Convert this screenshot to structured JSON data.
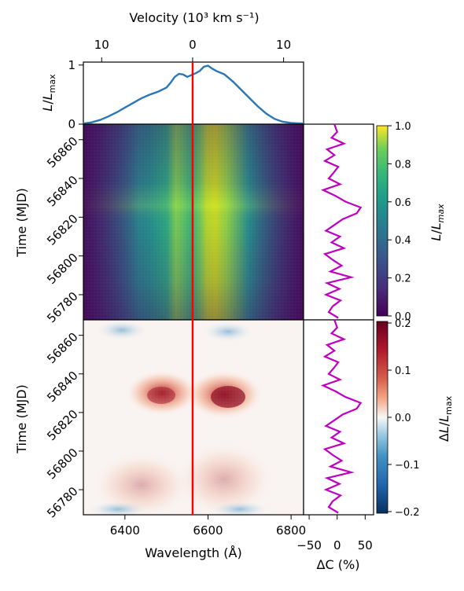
{
  "chart_data": [
    {
      "type": "line",
      "panel": "line-profile",
      "xlabel": "",
      "top_axis": {
        "label": "Velocity (10³ km s⁻¹)",
        "ticks": [
          "10",
          "0",
          "10"
        ],
        "tick_values": [
          -10,
          0,
          10
        ]
      },
      "ylabel": "L/Lmax",
      "yticks": [
        "0",
        "1"
      ],
      "ylim": [
        0,
        1.05
      ],
      "xlim": [
        6300,
        6830
      ],
      "profile": {
        "x": [
          6300,
          6320,
          6340,
          6360,
          6380,
          6400,
          6420,
          6440,
          6460,
          6480,
          6500,
          6510,
          6520,
          6530,
          6540,
          6550,
          6560,
          6563,
          6570,
          6580,
          6590,
          6600,
          6610,
          6620,
          6630,
          6640,
          6660,
          6680,
          6700,
          6720,
          6740,
          6760,
          6780,
          6800,
          6830
        ],
        "y": [
          0.01,
          0.03,
          0.07,
          0.13,
          0.2,
          0.28,
          0.36,
          0.44,
          0.5,
          0.55,
          0.62,
          0.7,
          0.8,
          0.85,
          0.84,
          0.8,
          0.83,
          0.84,
          0.86,
          0.9,
          0.97,
          0.99,
          0.94,
          0.9,
          0.87,
          0.84,
          0.72,
          0.58,
          0.44,
          0.3,
          0.18,
          0.09,
          0.04,
          0.02,
          0.01
        ]
      }
    },
    {
      "type": "heatmap",
      "panel": "mean-flux",
      "ylabel": "Time (MJD)",
      "yticks": [
        "56860",
        "56840",
        "56820",
        "56800",
        "56780"
      ],
      "ylim": [
        56767,
        56868
      ],
      "colorbar": {
        "label": "L/Lmax",
        "ticks": [
          "1.0",
          "0.8",
          "0.6",
          "0.4",
          "0.2",
          "0.0"
        ],
        "range": [
          0,
          1
        ]
      }
    },
    {
      "type": "heatmap",
      "panel": "flux-residual",
      "xlabel": "Wavelength (Å)",
      "ylabel": "Time (MJD)",
      "xticks": [
        "6400",
        "6600",
        "6800"
      ],
      "yticks": [
        "56860",
        "56840",
        "56820",
        "56800",
        "56780"
      ],
      "ylim": [
        56767,
        56868
      ],
      "colorbar": {
        "label": "ΔL/Lmax",
        "ticks": [
          "0.2",
          "0.1",
          "0.0",
          "−0.1",
          "−0.2"
        ],
        "range": [
          -0.2,
          0.2
        ]
      }
    },
    {
      "type": "line",
      "panel": "continuum-lightcurve",
      "xlabel": "ΔC (%)",
      "xticks": [
        "−50",
        "0",
        "50"
      ],
      "xlim": [
        -60,
        65
      ],
      "curve": {
        "mjd": [
          56868,
          56864,
          56861,
          56858,
          56855,
          56852,
          56849,
          56846,
          56843,
          56840,
          56837,
          56834,
          56831,
          56828,
          56825,
          56822,
          56819,
          56816,
          56813,
          56810,
          56807,
          56804,
          56801,
          56798,
          56795,
          56792,
          56789,
          56786,
          56783,
          56780,
          56777,
          56774,
          56771,
          56768
        ],
        "dc": [
          -5,
          0,
          -10,
          12,
          -18,
          -5,
          -22,
          2,
          -6,
          -15,
          5,
          -25,
          -3,
          15,
          42,
          35,
          10,
          -5,
          -20,
          5,
          -10,
          12,
          -22,
          -8,
          8,
          -12,
          25,
          -18,
          4,
          -20,
          6,
          -8,
          -15,
          2
        ]
      }
    }
  ],
  "colors": {
    "profile": "#2a77b4",
    "marker": "#ff0000",
    "lightcurve": "#c000c0"
  }
}
